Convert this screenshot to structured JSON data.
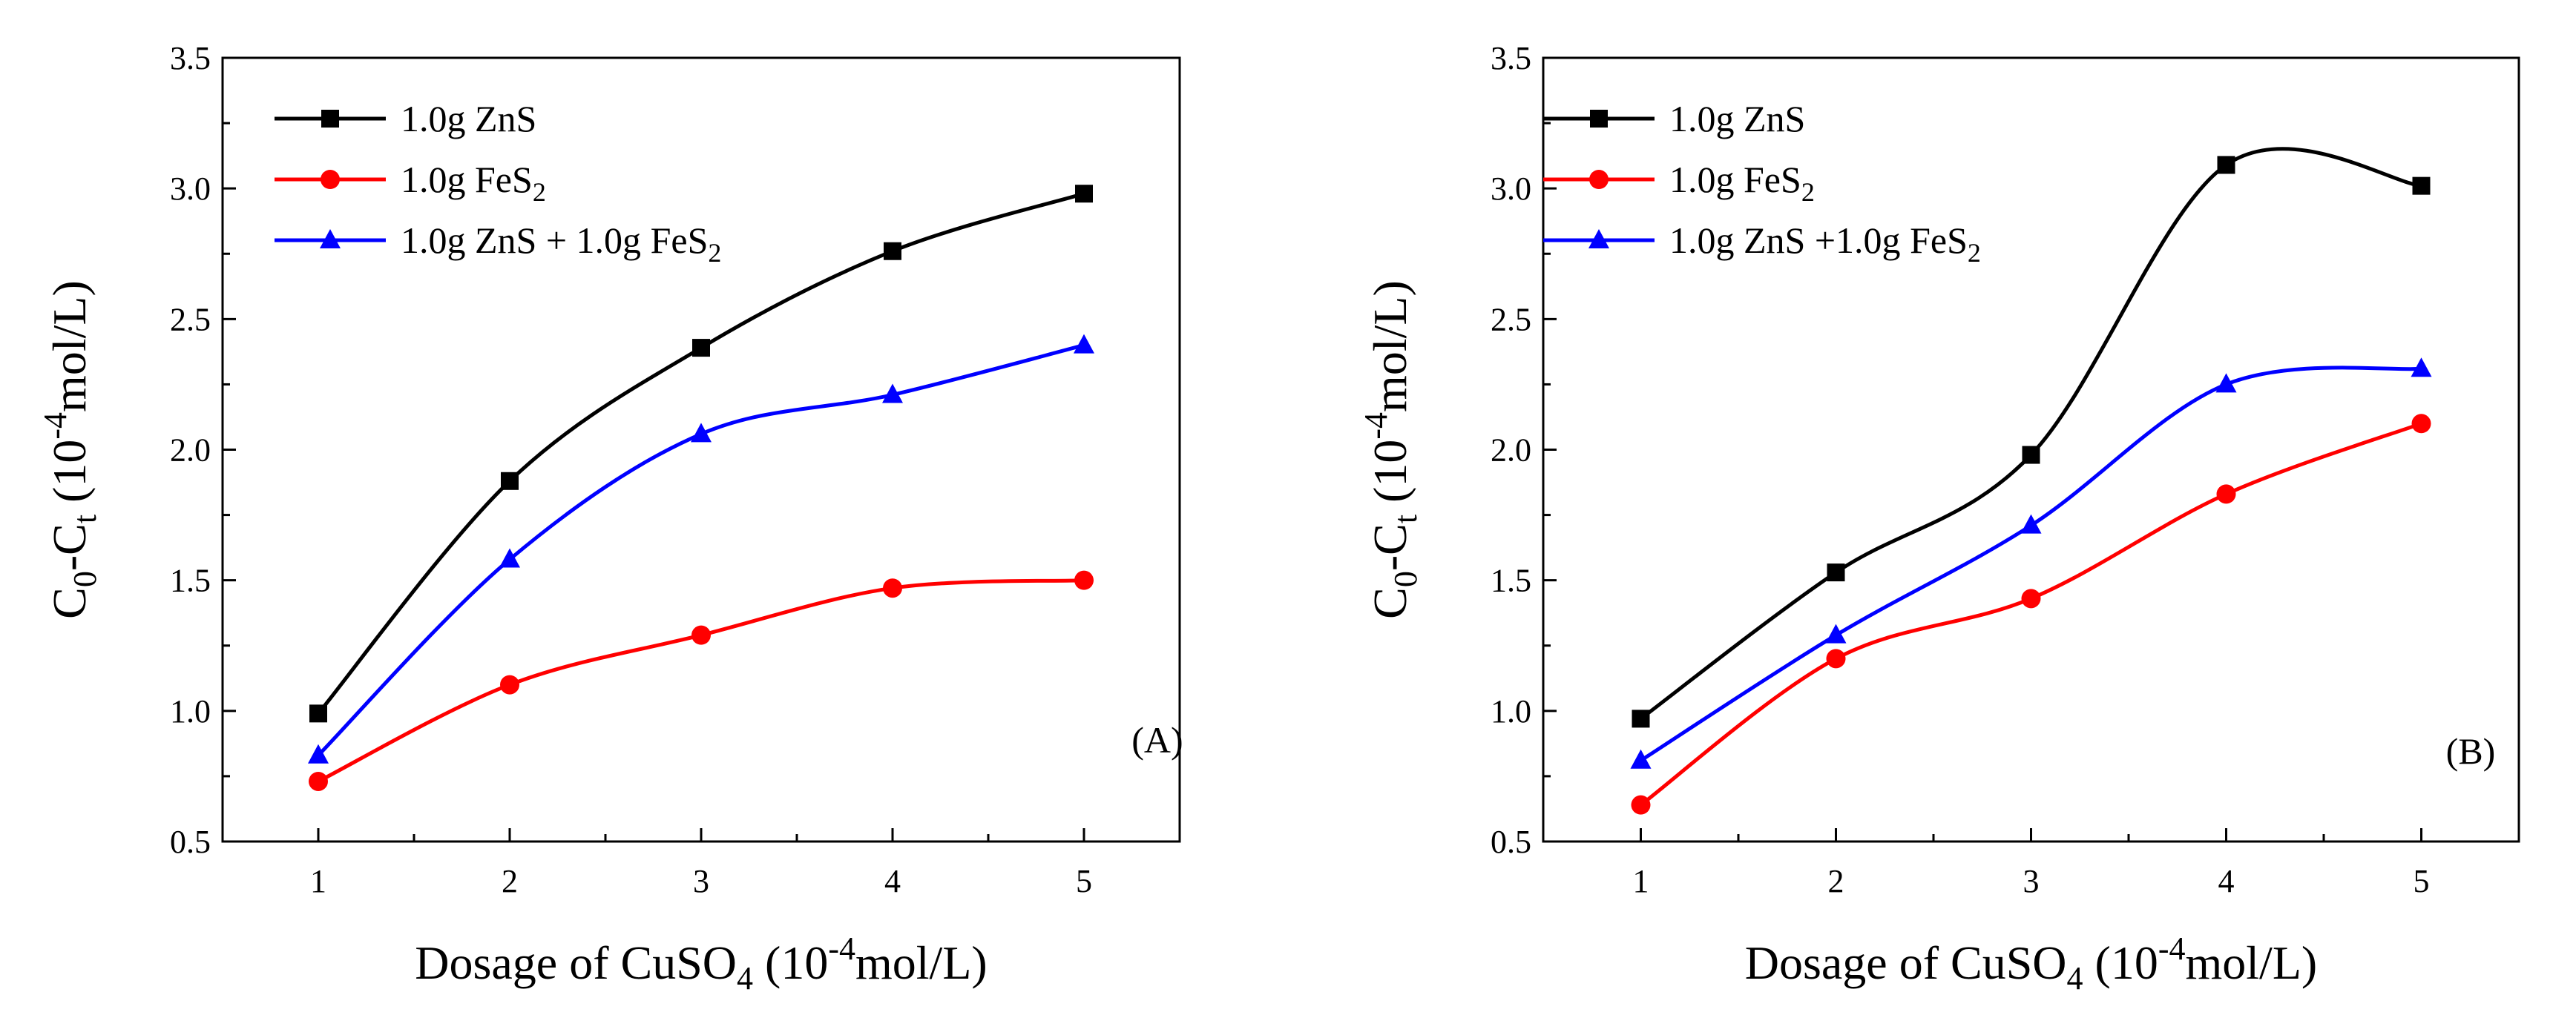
{
  "chart_data": [
    {
      "type": "line",
      "panel_label": "(A)",
      "title": "",
      "xlabel": "Dosage of CuSO4 (10-4mol/L)",
      "ylabel": "C0-Ct (10-4mol/L)",
      "x": [
        1,
        2,
        3,
        4,
        5
      ],
      "xlim": [
        0.5,
        5.5
      ],
      "ylim": [
        0.5,
        3.5
      ],
      "xticks": [
        1,
        2,
        3,
        4,
        5
      ],
      "yticks": [
        "0.5",
        "1.0",
        "1.5",
        "2.0",
        "2.5",
        "3.0",
        "3.5"
      ],
      "legend_position": "top-left",
      "series": [
        {
          "name": "1.0g ZnS",
          "color": "#000000",
          "marker": "square",
          "values": [
            0.99,
            1.88,
            2.39,
            2.76,
            2.98
          ]
        },
        {
          "name": "1.0g FeS2",
          "color": "#ff0000",
          "marker": "circle",
          "values": [
            0.73,
            1.1,
            1.29,
            1.47,
            1.5
          ]
        },
        {
          "name": "1.0g ZnS + 1.0g FeS2",
          "color": "#0000ff",
          "marker": "triangle",
          "values": [
            0.83,
            1.58,
            2.06,
            2.21,
            2.4
          ]
        }
      ]
    },
    {
      "type": "line",
      "panel_label": "(B)",
      "title": "",
      "xlabel": "Dosage of CuSO4 (10-4mol/L)",
      "ylabel": "C0-Ct (10-4mol/L)",
      "x": [
        1,
        2,
        3,
        4,
        5
      ],
      "xlim": [
        0.5,
        5.5
      ],
      "ylim": [
        0.5,
        3.5
      ],
      "xticks": [
        1,
        2,
        3,
        4,
        5
      ],
      "yticks": [
        "0.5",
        "1.0",
        "1.5",
        "2.0",
        "2.5",
        "3.0",
        "3.5"
      ],
      "legend_position": "top-left",
      "series": [
        {
          "name": "1.0g ZnS",
          "color": "#000000",
          "marker": "square",
          "values": [
            0.97,
            1.53,
            1.98,
            3.09,
            3.01
          ]
        },
        {
          "name": "1.0g FeS2",
          "color": "#ff0000",
          "marker": "circle",
          "values": [
            0.64,
            1.2,
            1.43,
            1.83,
            2.1
          ]
        },
        {
          "name": "1.0g ZnS +1.0g FeS2",
          "color": "#0000ff",
          "marker": "triangle",
          "values": [
            0.81,
            1.29,
            1.71,
            2.25,
            2.31
          ]
        }
      ]
    }
  ]
}
